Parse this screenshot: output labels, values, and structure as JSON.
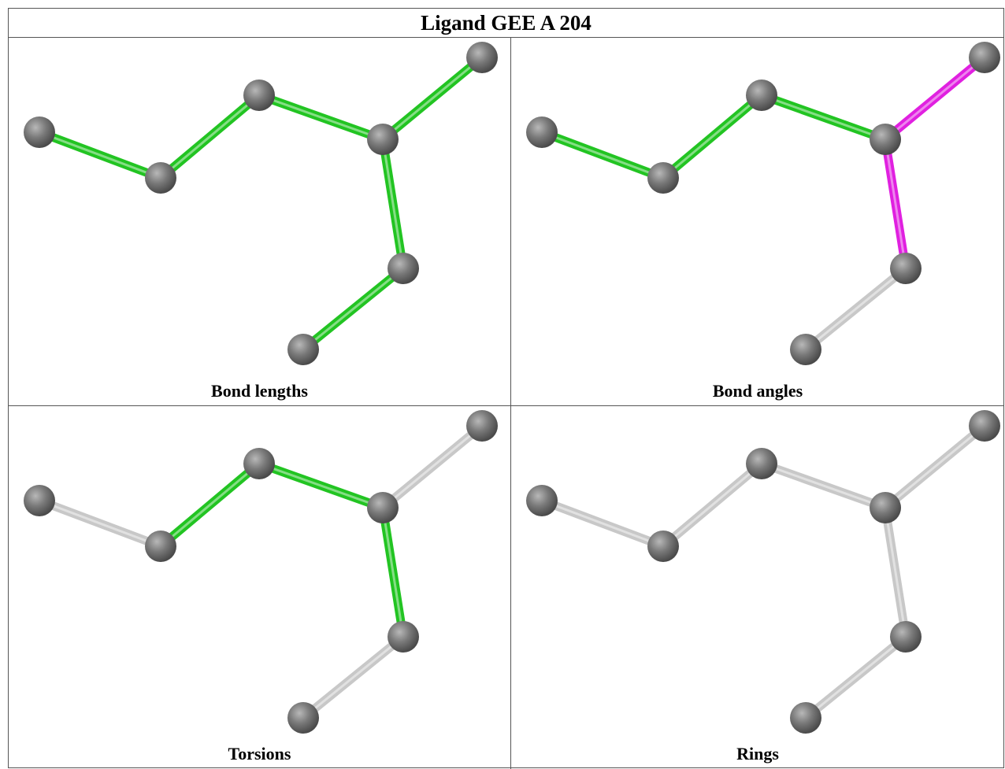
{
  "table": {
    "title": "Ligand GEE A 204",
    "panels": [
      "Bond lengths",
      "Bond angles",
      "Torsions",
      "Rings"
    ]
  }
}
